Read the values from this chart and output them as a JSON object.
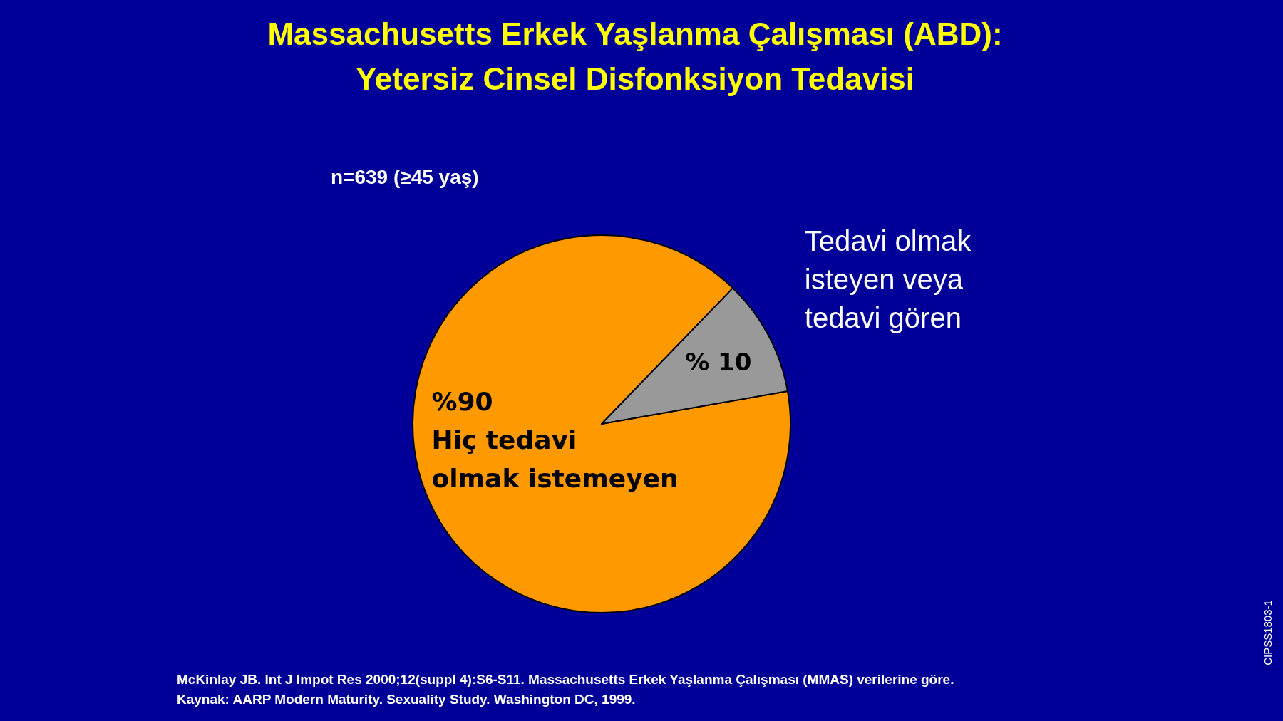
{
  "chart_data": {
    "type": "pie",
    "title": "Massachusetts Erkek Yaşlanma Çalışması (ABD): Yetersiz Cinsel Disfonksiyon Tedavisi",
    "subtitle": "n=639 (≥45 yaş)",
    "categories": [
      "Hiç tedavi olmak istemeyen",
      "Tedavi olmak isteyen veya tedavi gören"
    ],
    "values": [
      90,
      10
    ],
    "value_labels": [
      "%90",
      "% 10"
    ],
    "colors": [
      "#ff9900",
      "#999999"
    ],
    "annotations": [
      "McKinlay JB. Int J Impot Res 2000;12(suppl 4):S6-S11. Massachusetts Erkek Yaşlanma Çalışması (MMAS) verilerine göre.",
      "Kaynak: AARP Modern Maturity. Sexuality Study. Washington DC, 1999.",
      "CIPSS1803-1"
    ]
  }
}
